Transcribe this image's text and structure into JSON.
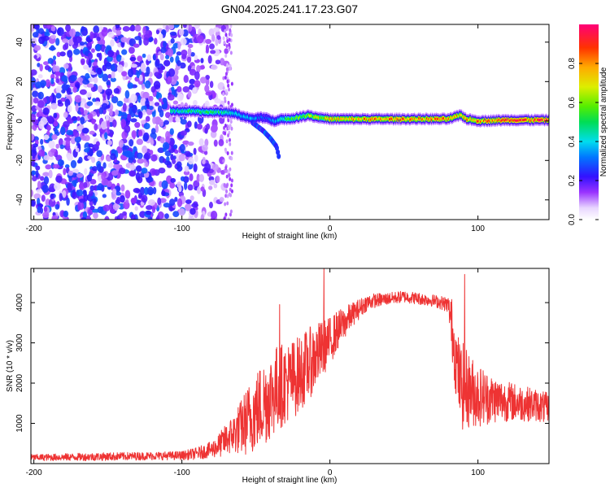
{
  "figure_title": "GN04.2025.241.17.23.G07",
  "chart_data": [
    {
      "type": "heatmap",
      "title": "GN04.2025.241.17.23.G07",
      "xlabel": "Height of straight line (km)",
      "ylabel": "Frequency (Hz)",
      "xlim": [
        -202,
        148
      ],
      "ylim": [
        -50,
        49
      ],
      "x_ticks": [
        -200,
        -100,
        0,
        100
      ],
      "x_tick_labels": [
        "-200",
        "-100",
        "0",
        "100"
      ],
      "y_ticks": [
        -40,
        -20,
        0,
        20,
        40
      ],
      "y_tick_labels": [
        "-40",
        "-20",
        "0",
        "20",
        "40"
      ],
      "colorbar": {
        "label": "Normalized spectral amplitude",
        "range": [
          0,
          1
        ],
        "ticks": [
          0.0,
          0.2,
          0.4,
          0.6,
          0.8
        ],
        "tick_labels": [
          "0.0",
          "0.2",
          "0.4",
          "0.6",
          "0.8"
        ]
      },
      "noise_region": {
        "x_range": [
          -202,
          -70
        ],
        "freq_range": [
          -50,
          49
        ],
        "amplitude_range": [
          0.05,
          0.3
        ]
      },
      "ridge": {
        "x": [
          -108,
          -95,
          -85,
          -75,
          -65,
          -58,
          -52,
          -47,
          -42,
          -38,
          -34,
          -28,
          -20,
          -15,
          -10,
          0,
          20,
          40,
          60,
          80,
          88,
          92,
          100,
          120,
          148
        ],
        "frequency": [
          5,
          5,
          4.5,
          4.5,
          4,
          2,
          1,
          2,
          1,
          0,
          1,
          1,
          2,
          3,
          2,
          1,
          1,
          1,
          1,
          1,
          3,
          1,
          0,
          0.5,
          0.5
        ],
        "amplitude": [
          0.45,
          0.5,
          0.5,
          0.5,
          0.4,
          0.4,
          0.35,
          0.3,
          0.3,
          0.35,
          0.45,
          0.55,
          0.6,
          0.65,
          0.7,
          0.75,
          0.8,
          0.85,
          0.85,
          0.85,
          0.8,
          0.8,
          0.85,
          0.9,
          0.95
        ]
      },
      "branch": {
        "x": [
          -52,
          -45,
          -40,
          -36,
          -34
        ],
        "frequency": [
          -1,
          -5,
          -9,
          -13,
          -20
        ]
      }
    },
    {
      "type": "line",
      "title": "",
      "xlabel": "Height of straight line (km)",
      "ylabel": "SNR (10 * v/v)",
      "xlim": [
        -202,
        148
      ],
      "ylim": [
        0,
        4850
      ],
      "x_ticks": [
        -200,
        -100,
        0,
        100
      ],
      "x_tick_labels": [
        "-200",
        "-100",
        "0",
        "100"
      ],
      "y_ticks": [
        1000,
        2000,
        3000,
        4000
      ],
      "y_tick_labels": [
        "1000",
        "2000",
        "3000",
        "4000"
      ],
      "color": "#ee3333",
      "series": [
        {
          "name": "SNR",
          "x": [
            -202,
            -180,
            -160,
            -140,
            -120,
            -100,
            -90,
            -80,
            -75,
            -70,
            -65,
            -60,
            -55,
            -50,
            -45,
            -40,
            -35,
            -30,
            -25,
            -20,
            -15,
            -10,
            -5,
            0,
            5,
            10,
            15,
            20,
            25,
            30,
            40,
            50,
            60,
            70,
            75,
            80,
            82,
            85,
            88,
            90,
            95,
            100,
            110,
            120,
            130,
            140,
            148
          ],
          "values": [
            150,
            160,
            170,
            180,
            190,
            200,
            250,
            350,
            450,
            600,
            750,
            900,
            1100,
            1300,
            1500,
            1700,
            1900,
            2000,
            2100,
            2250,
            2450,
            2650,
            2850,
            3050,
            3300,
            3500,
            3700,
            3850,
            4000,
            4050,
            4100,
            4150,
            4100,
            4050,
            4000,
            3950,
            3500,
            2600,
            2000,
            1900,
            1800,
            1700,
            1600,
            1550,
            1500,
            1450,
            1350
          ],
          "noise_envelope": [
            80,
            90,
            100,
            100,
            100,
            110,
            150,
            200,
            300,
            400,
            500,
            700,
            900,
            1000,
            1100,
            1100,
            1100,
            1000,
            1000,
            950,
            900,
            850,
            700,
            600,
            500,
            400,
            300,
            250,
            200,
            180,
            150,
            150,
            150,
            150,
            170,
            200,
            700,
            900,
            1000,
            1100,
            900,
            800,
            600,
            500,
            450,
            400,
            400
          ]
        }
      ],
      "spikes": [
        {
          "x": -34,
          "value": 3950
        },
        {
          "x": -4,
          "value": 4850
        },
        {
          "x": 91,
          "value": 4700
        }
      ]
    }
  ]
}
